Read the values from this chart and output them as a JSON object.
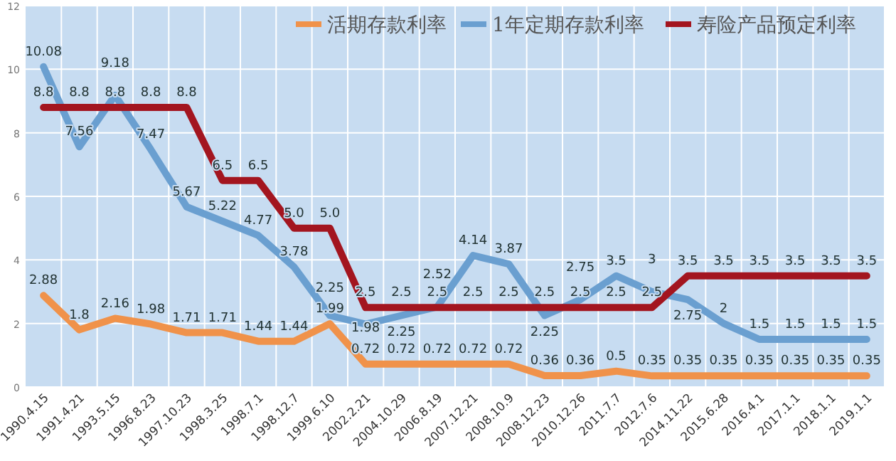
{
  "chart_data": {
    "type": "line",
    "categories": [
      "1990.4.15",
      "1991.4.21",
      "1993.5.15",
      "1996.8.23",
      "1997.10.23",
      "1998.3.25",
      "1998.7.1",
      "1998.12.7",
      "1999.6.10",
      "2002.2.21",
      "2004.10.29",
      "2006.8.19",
      "2007.12.21",
      "2008.10.9",
      "2008.12.23",
      "2010.12.26",
      "2011.7.7",
      "2012.7.6",
      "2014.11.22",
      "2015.6.28",
      "2016.4.1",
      "2017.1.1",
      "2018.1.1",
      "2019.1.1"
    ],
    "series": [
      {
        "name": "活期存款利率",
        "color": "#f0924a",
        "values": [
          2.88,
          1.8,
          2.16,
          1.98,
          1.71,
          1.71,
          1.44,
          1.44,
          1.99,
          0.72,
          0.72,
          0.72,
          0.72,
          0.72,
          0.36,
          0.36,
          0.5,
          0.35,
          0.35,
          0.35,
          0.35,
          0.35,
          0.35,
          0.35
        ],
        "value_labels": [
          "2.88",
          "1.8",
          "2.16",
          "1.98",
          "1.71",
          "1.71",
          "1.44",
          "1.44",
          "1.99",
          "0.72",
          "0.72",
          "0.72",
          "0.72",
          "0.72",
          "0.36",
          "0.36",
          "0.5",
          "0.35",
          "0.35",
          "0.35",
          "0.35",
          "0.35",
          "0.35",
          "0.35"
        ]
      },
      {
        "name": "1年定期存款利率",
        "color": "#6a9fd0",
        "values": [
          10.08,
          7.56,
          9.18,
          7.47,
          5.67,
          5.22,
          4.77,
          3.78,
          2.25,
          1.98,
          2.25,
          2.52,
          4.14,
          3.87,
          2.25,
          2.75,
          3.5,
          3,
          2.75,
          2,
          1.5,
          1.5,
          1.5,
          1.5
        ],
        "value_labels": [
          "10.08",
          "7.56",
          "9.18",
          "7.47",
          "5.67",
          "5.22",
          "4.77",
          "3.78",
          "2.25",
          "1.98",
          "2.25",
          "2.52",
          "4.14",
          "3.87",
          "2.25",
          "2.75",
          "3.5",
          "3",
          "2.75",
          "2",
          "1.5",
          "1.5",
          "1.5",
          "1.5"
        ]
      },
      {
        "name": "寿险产品预定利率",
        "color": "#a3151f",
        "values": [
          8.8,
          8.8,
          8.8,
          8.8,
          8.8,
          6.5,
          6.5,
          5,
          5,
          2.5,
          2.5,
          2.5,
          2.5,
          2.5,
          2.5,
          2.5,
          2.5,
          2.5,
          3.5,
          3.5,
          3.5,
          3.5,
          3.5,
          3.5
        ],
        "value_labels": [
          "8.8",
          "8.8",
          "8.8",
          "8.8",
          "8.8",
          "6.5",
          "6.5",
          "5.0",
          "5.0",
          "2.5",
          "2.5",
          "2.5",
          "2.5",
          "2.5",
          "2.5",
          "2.5",
          "2.5",
          "2.5",
          "3.5",
          "3.5",
          "3.5",
          "3.5",
          "3.5",
          "3.5"
        ]
      }
    ],
    "ylim": [
      0,
      12
    ],
    "yticks": [
      0,
      2,
      4,
      6,
      8,
      10,
      12
    ],
    "grid": true,
    "legend": "top right",
    "line_style": "solid",
    "marker": "none"
  }
}
